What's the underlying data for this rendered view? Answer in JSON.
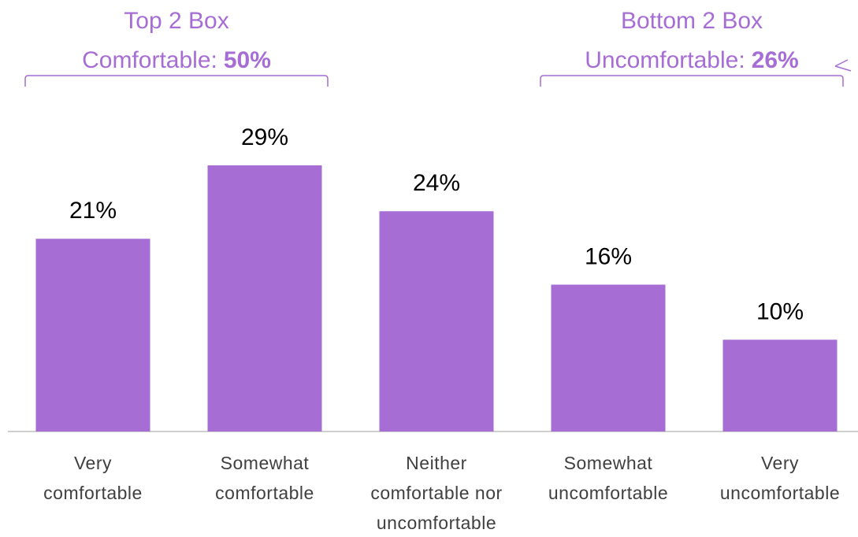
{
  "chart_data": {
    "type": "bar",
    "categories": [
      [
        "Very",
        "comfortable"
      ],
      [
        "Somewhat",
        "comfortable"
      ],
      [
        "Neither",
        "comfortable nor",
        "uncomfortable"
      ],
      [
        "Somewhat",
        "uncomfortable"
      ],
      [
        "Very",
        "uncomfortable"
      ]
    ],
    "values": [
      21,
      29,
      24,
      16,
      10
    ],
    "value_labels": [
      "21%",
      "29%",
      "24%",
      "16%",
      "10%"
    ],
    "color": "#a66dd4",
    "annotations": [
      {
        "title": "Top 2 Box",
        "label": "Comfortable:",
        "value_label": "50%"
      },
      {
        "title": "Bottom 2 Box",
        "label": "Uncomfortable:",
        "value_label": "26%"
      }
    ]
  }
}
